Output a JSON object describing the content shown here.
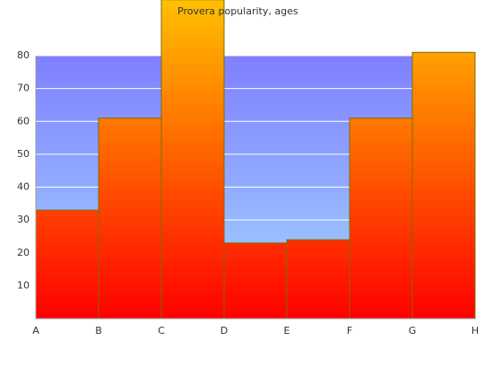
{
  "chart_data": {
    "type": "step-area",
    "title": "Provera popularity, ages",
    "categories": [
      "A",
      "B",
      "C",
      "D",
      "E",
      "F",
      "G",
      "H"
    ],
    "values": [
      33,
      61,
      97,
      23,
      24,
      61,
      81,
      null
    ],
    "ylim": [
      0,
      80
    ],
    "yticks": [
      10,
      20,
      30,
      40,
      50,
      60,
      70,
      80
    ],
    "grid": true,
    "color": "#ff4000",
    "background_color": "#8ab0ff"
  }
}
